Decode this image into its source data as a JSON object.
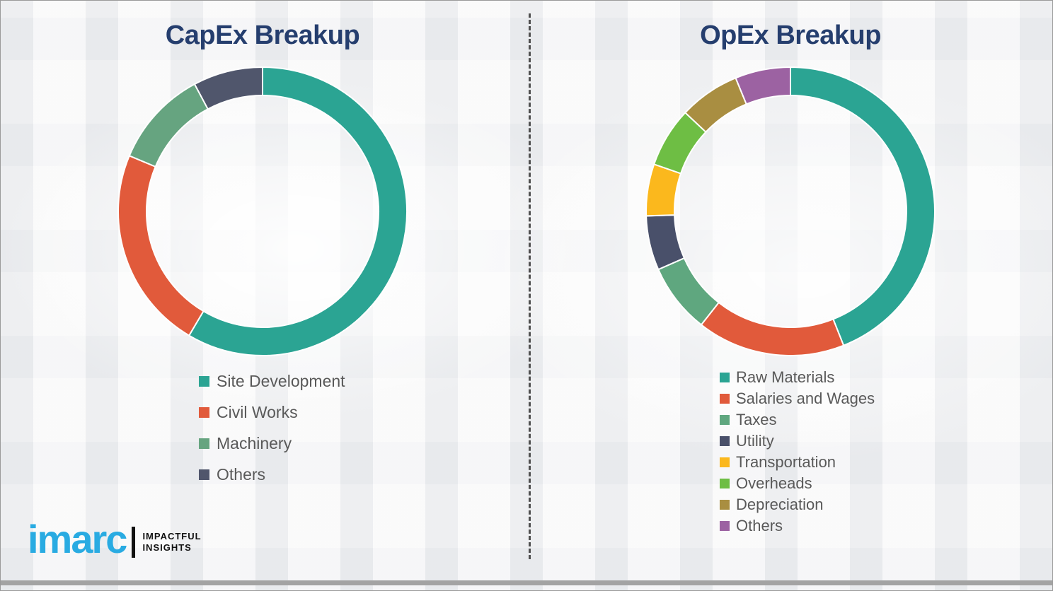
{
  "page": {
    "background_color": "#f1f1f2",
    "divider_color": "#4f4f4f",
    "bottom_bar_color": "#a3a3a3",
    "title_color": "#253e6e",
    "legend_text_color": "#595959"
  },
  "chart_data": [
    {
      "type": "pie",
      "style": "donut",
      "title": "CapEx Breakup",
      "labels": [
        "Site Development",
        "Civil Works",
        "Machinery",
        "Others"
      ],
      "values": [
        58.5,
        22.8,
        10.9,
        7.8
      ],
      "colors": [
        "#2ba493",
        "#e15a3b",
        "#66a480",
        "#50566c"
      ],
      "legend_position": "bottom-left",
      "start_angle_deg": 0,
      "direction": "clockwise"
    },
    {
      "type": "pie",
      "style": "donut",
      "title": "OpEx Breakup",
      "labels": [
        "Raw Materials",
        "Salaries and Wages",
        "Taxes",
        "Utility",
        "Transportation",
        "Overheads",
        "Depreciation",
        "Others"
      ],
      "values": [
        44.0,
        16.6,
        7.8,
        6.1,
        5.8,
        6.7,
        6.8,
        6.2
      ],
      "colors": [
        "#2ba493",
        "#e15a3b",
        "#5fa77f",
        "#49506a",
        "#fbb81d",
        "#6ebe44",
        "#a98e41",
        "#9c62a2"
      ],
      "legend_position": "bottom-left",
      "start_angle_deg": 0,
      "direction": "clockwise"
    }
  ],
  "logo": {
    "wordmark": "imarc",
    "wordmark_color": "#29abe2",
    "tagline_line1": "IMPACTFUL",
    "tagline_line2": "INSIGHTS"
  }
}
